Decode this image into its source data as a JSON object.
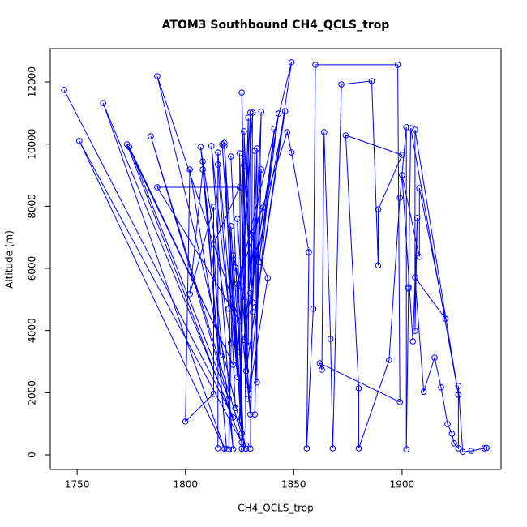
{
  "chart_data": {
    "type": "line",
    "title": "ATOM3 Southbound CH4_QCLS_trop",
    "x_label": "CH4_QCLS_trop",
    "y_label": "Altitude (m)",
    "color": "#0000ff",
    "markers": "open-circle",
    "xlim": [
      1737.6,
      1945.7
    ],
    "xticks": [
      1750,
      1800,
      1850,
      1900
    ],
    "ylim": [
      -470,
      13070
    ],
    "yticks": [
      0,
      2000,
      4000,
      6000,
      8000,
      10000,
      12000
    ],
    "x": [
      1744,
      1822,
      1762,
      1818,
      1751,
      1826,
      1773,
      1822,
      1774,
      1820,
      1784,
      1828,
      1787,
      1825,
      1787,
      1825,
      1813,
      1816,
      1802,
      1800,
      1813,
      1813,
      1802,
      1808,
      1819,
      1808,
      1821,
      1807,
      1822,
      1812,
      1820,
      1815,
      1815,
      1815,
      1824,
      1817,
      1826,
      1818,
      1823,
      1818,
      1827,
      1821,
      1825,
      1821,
      1820,
      1822,
      1827,
      1823,
      1830,
      1824,
      1826,
      1825,
      1829,
      1826,
      1828,
      1827,
      1831,
      1827,
      1825,
      1829,
      1829,
      1830,
      1826,
      1831,
      1830,
      1832,
      1833,
      1833,
      1831,
      1835,
      1832,
      1835,
      1827,
      1836,
      1830,
      1838,
      1829,
      1841,
      1834,
      1843,
      1830,
      1846,
      1828,
      1849,
      1824,
      1847,
      1849,
      1857,
      1856,
      1859,
      1860,
      1898,
      1899,
      1862,
      1863,
      1864,
      1867,
      1868,
      1872,
      1886,
      1889,
      1889,
      1900,
      1874,
      1880,
      1880,
      1894,
      1899,
      1902,
      1902,
      1903,
      1903,
      1904,
      1926,
      1906,
      1906,
      1907,
      1905,
      1900,
      1908,
      1908,
      1920,
      1906,
      1910,
      1915,
      1918,
      1921,
      1923,
      1924,
      1926,
      1926,
      1928,
      1932,
      1938,
      1939
    ],
    "values": [
      11740,
      1200,
      11320,
      200,
      10100,
      400,
      9990,
      2900,
      9910,
      1800,
      10250,
      200,
      12180,
      4300,
      8610,
      8610,
      6780,
      3200,
      9180,
      1070,
      1960,
      7980,
      5170,
      9180,
      180,
      9440,
      3600,
      9910,
      180,
      9940,
      4700,
      9340,
      210,
      9730,
      2500,
      9990,
      700,
      10040,
      1500,
      9940,
      180,
      9600,
      3300,
      7360,
      180,
      6420,
      5000,
      6030,
      1300,
      7590,
      200,
      9700,
      2100,
      11660,
      300,
      10410,
      4600,
      9310,
      1100,
      10850,
      3500,
      11010,
      5400,
      11010,
      200,
      9780,
      2330,
      9860,
      4900,
      11040,
      1300,
      9180,
      3700,
      7960,
      7100,
      5690,
      1800,
      10490,
      6200,
      10980,
      5200,
      11060,
      2700,
      12630,
      5500,
      10380,
      9730,
      6520,
      210,
      4700,
      12550,
      12550,
      1700,
      2950,
      2740,
      10380,
      3730,
      210,
      11920,
      12030,
      6100,
      7900,
      9650,
      10280,
      2140,
      210,
      3050,
      8270,
      10540,
      180,
      5350,
      5400,
      10510,
      1930,
      10460,
      3990,
      7620,
      3650,
      9000,
      6370,
      8580,
      4380,
      5710,
      2030,
      3130,
      2170,
      990,
      680,
      370,
      210,
      2220,
      100,
      130,
      210,
      220
    ]
  }
}
